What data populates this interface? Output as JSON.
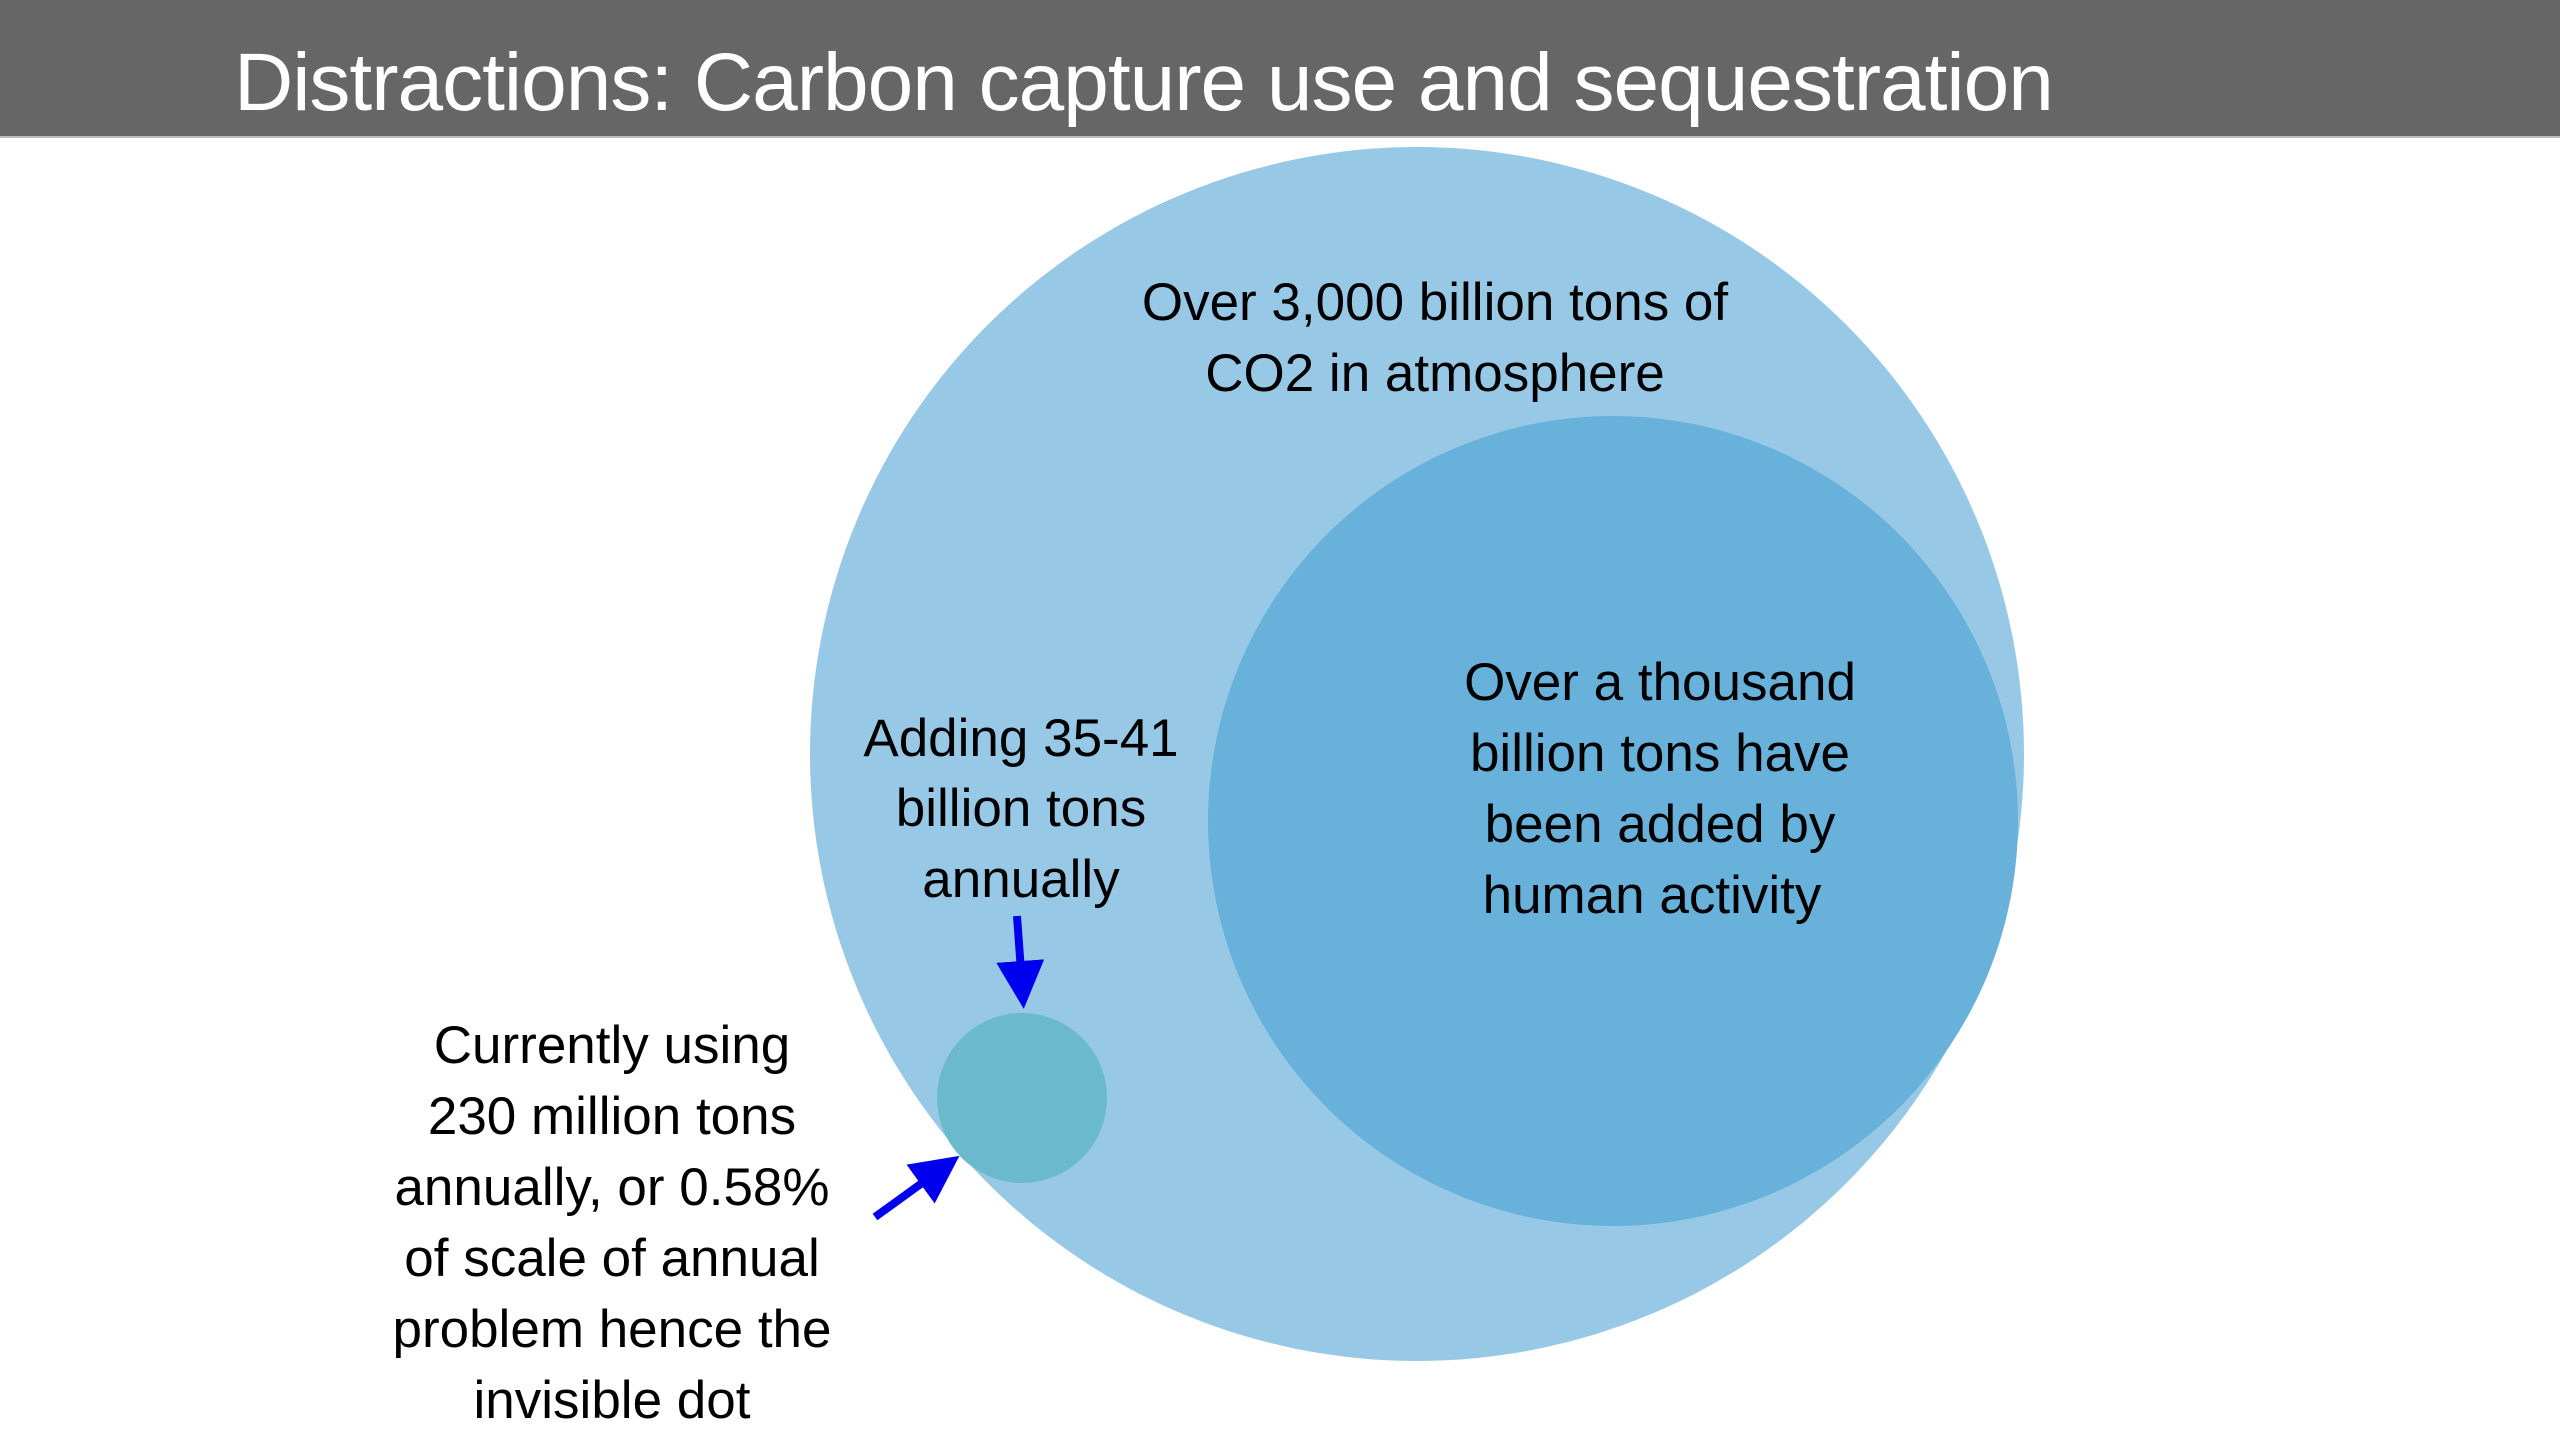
{
  "title": "Distractions: Carbon capture use and sequestration",
  "colors": {
    "header": "#666666",
    "atmosphere_circle": "#97c9e6",
    "human_circle": "#67b1da",
    "annual_circle": "#6ab9cd",
    "arrow": "#0000ee"
  },
  "labels": {
    "atmosphere": [
      "Over 3,000 billion tons of",
      "CO2 in atmosphere"
    ],
    "human": [
      "Over a thousand",
      "billion tons have",
      "been added by",
      "human activity"
    ],
    "annual": [
      "Adding 35-41",
      "billion tons",
      "annually"
    ],
    "usage": [
      "Currently using",
      "230 million tons",
      "annually, or 0.58%",
      "of scale of annual",
      "problem hence the",
      "invisible dot"
    ]
  }
}
